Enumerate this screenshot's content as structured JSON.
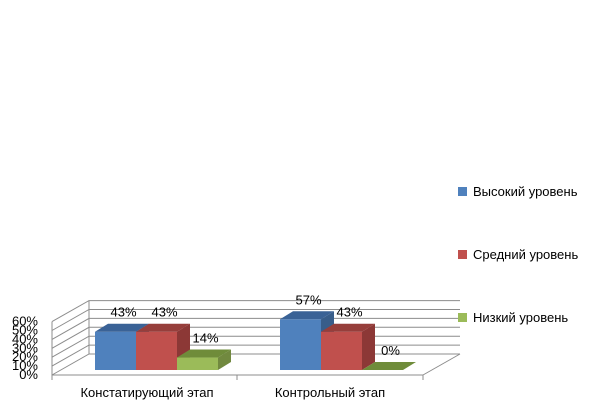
{
  "chart_data": {
    "type": "bar",
    "categories": [
      "Констатирующий этап",
      "Контрольный этап"
    ],
    "series": [
      {
        "name": "Высокий уровень",
        "values": [
          43,
          57
        ],
        "labels": [
          "43%",
          "57%"
        ],
        "color": "#4F81BD",
        "side": "#385D8A",
        "top": "#3A6296"
      },
      {
        "name": "Средний уровень",
        "values": [
          43,
          43
        ],
        "labels": [
          "43%",
          "43%"
        ],
        "color": "#C0504D",
        "side": "#8C3836",
        "top": "#963E3B"
      },
      {
        "name": "Низкий уровень",
        "values": [
          14,
          0
        ],
        "labels": [
          "14%",
          "0%"
        ],
        "color": "#9BBB59",
        "side": "#71893F",
        "top": "#6F8C3A"
      }
    ],
    "yticks": [
      "0%",
      "10%",
      "20%",
      "30%",
      "40%",
      "50%",
      "60%"
    ],
    "ylim": [
      0,
      60
    ],
    "grid": true,
    "legend_position": "right",
    "title": "",
    "xlabel": "",
    "ylabel": ""
  }
}
